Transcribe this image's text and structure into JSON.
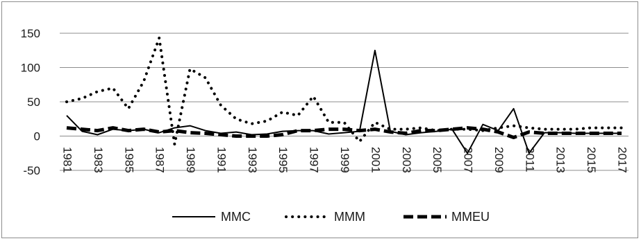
{
  "chart_data": {
    "type": "line",
    "title": "",
    "xlabel": "",
    "ylabel": "",
    "x": [
      1981,
      1982,
      1983,
      1984,
      1985,
      1986,
      1987,
      1988,
      1989,
      1990,
      1991,
      1992,
      1993,
      1994,
      1995,
      1996,
      1997,
      1998,
      1999,
      2000,
      2001,
      2002,
      2003,
      2004,
      2005,
      2006,
      2007,
      2008,
      2009,
      2010,
      2011,
      2012,
      2013,
      2014,
      2015,
      2016,
      2017
    ],
    "x_tick_labels": [
      "1981",
      "1983",
      "1985",
      "1987",
      "1989",
      "1991",
      "1993",
      "1995",
      "1997",
      "1999",
      "2001",
      "2003",
      "2005",
      "2007",
      "2009",
      "2011",
      "2013",
      "2015",
      "2017"
    ],
    "y_tick_labels": [
      "150",
      "100",
      "50",
      "0",
      "-50"
    ],
    "y_ticks": [
      150,
      100,
      50,
      0,
      -50
    ],
    "ylim": [
      -50,
      150
    ],
    "grid": "horizontal",
    "legend_position": "bottom",
    "series": [
      {
        "name": "MMC",
        "style": "solid",
        "values": [
          30,
          7,
          2,
          10,
          8,
          10,
          5,
          12,
          15,
          8,
          4,
          6,
          2,
          3,
          7,
          8,
          8,
          3,
          5,
          7,
          125,
          7,
          2,
          5,
          7,
          10,
          -25,
          17,
          8,
          40,
          -25,
          5,
          5,
          4,
          4,
          4,
          4
        ]
      },
      {
        "name": "MMM",
        "style": "dotted",
        "values": [
          50,
          55,
          65,
          70,
          40,
          80,
          143,
          -12,
          98,
          85,
          45,
          25,
          18,
          22,
          35,
          30,
          58,
          20,
          20,
          -8,
          20,
          10,
          10,
          12,
          8,
          10,
          10,
          8,
          12,
          15,
          12,
          10,
          10,
          10,
          12,
          12,
          12
        ]
      },
      {
        "name": "MMEU",
        "style": "dashed",
        "values": [
          12,
          10,
          8,
          12,
          8,
          10,
          6,
          8,
          5,
          4,
          2,
          0,
          0,
          0,
          2,
          8,
          8,
          10,
          10,
          8,
          10,
          6,
          4,
          8,
          8,
          10,
          12,
          10,
          6,
          -2,
          6,
          4,
          4,
          4,
          4,
          4,
          4
        ]
      }
    ],
    "colors": {
      "line": "#000000",
      "grid": "#8c8c8c",
      "frame": "#8c8c8c"
    }
  }
}
